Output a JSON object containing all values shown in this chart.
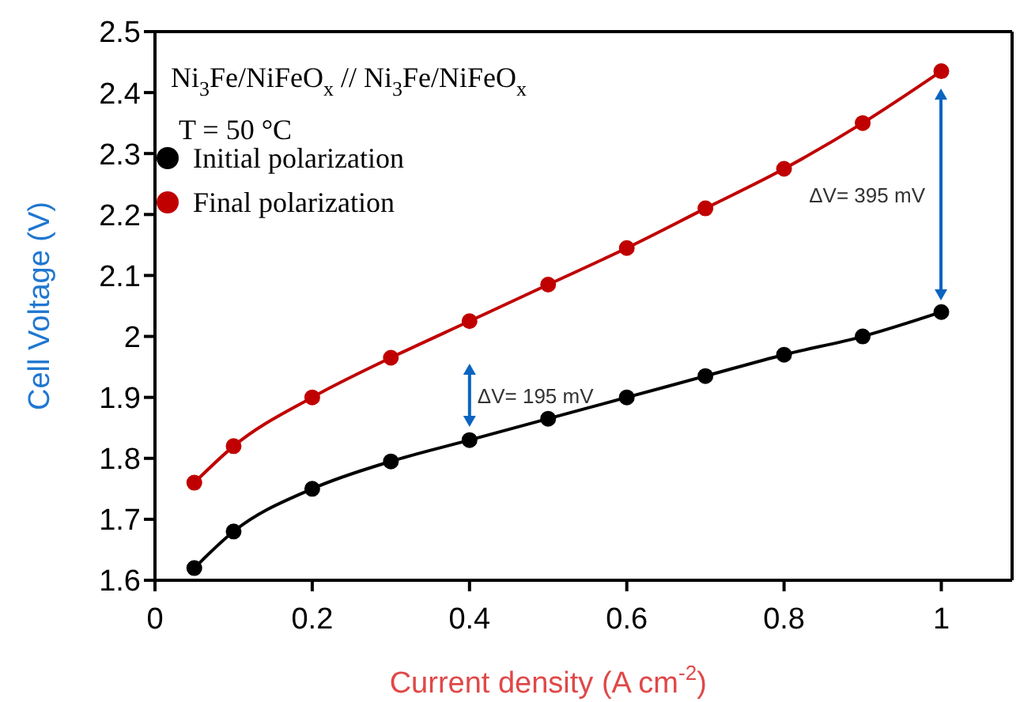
{
  "chart_data": {
    "type": "line",
    "xlabel": "Current density (A cm$^{-2}$)",
    "ylabel": "Cell Voltage (V)",
    "x": [
      0.05,
      0.1,
      0.2,
      0.3,
      0.4,
      0.5,
      0.6,
      0.7,
      0.8,
      0.9,
      1.0
    ],
    "series": [
      {
        "name": "Initial polarization",
        "color": "#000000",
        "values": [
          1.62,
          1.68,
          1.75,
          1.795,
          1.83,
          1.865,
          1.9,
          1.935,
          1.97,
          2.0,
          2.04
        ]
      },
      {
        "name": "Final polarization",
        "color": "#c00000",
        "values": [
          1.76,
          1.82,
          1.9,
          1.965,
          2.025,
          2.085,
          2.145,
          2.21,
          2.275,
          2.35,
          2.435
        ]
      }
    ],
    "xlim": [
      0,
      1.09
    ],
    "xticks": [
      0,
      0.2,
      0.4,
      0.6,
      0.8,
      1
    ],
    "ylim": [
      1.6,
      2.5
    ],
    "yticks": [
      1.6,
      1.7,
      1.8,
      1.9,
      2,
      2.1,
      2.2,
      2.3,
      2.4,
      2.5
    ],
    "annotations": [
      "Ni$_{3}$Fe/NiFeO$_{x}$ // Ni$_{3}$Fe/NiFeO$_{x}$",
      "T = 50 °C",
      "ΔV= 195 mV",
      "ΔV= 395 mV"
    ],
    "legend": "top left",
    "grid": false,
    "marker": "circle",
    "line_style": "solid"
  }
}
